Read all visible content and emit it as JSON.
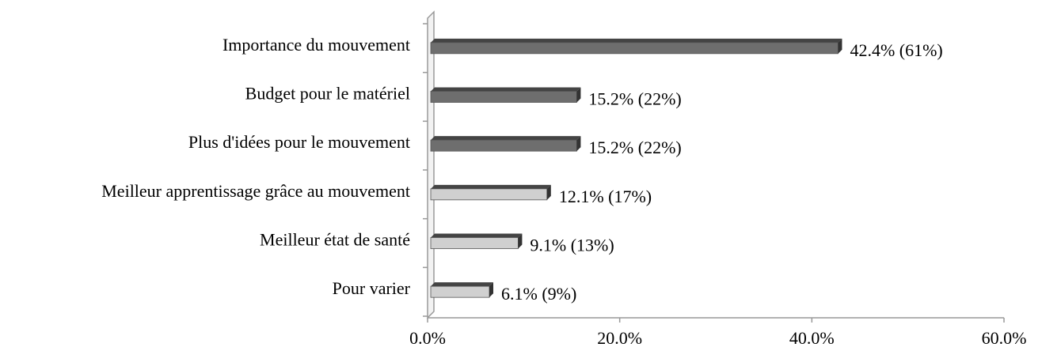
{
  "chart_data": {
    "type": "bar",
    "orientation": "horizontal",
    "categories": [
      "Importance du mouvement",
      "Budget pour le matériel",
      "Plus d'idées pour le mouvement",
      "Meilleur apprentissage grâce au mouvement",
      "Meilleur état de santé",
      "Pour varier"
    ],
    "values": [
      42.4,
      15.2,
      15.2,
      12.1,
      9.1,
      6.1
    ],
    "value_labels": [
      "42.4% (61%)",
      "15.2% (22%)",
      "15.2% (22%)",
      "12.1% (17%)",
      "9.1% (13%)",
      "6.1% (9%)"
    ],
    "colors": [
      "#6e6e6e",
      "#6e6e6e",
      "#6e6e6e",
      "#d0d0d0",
      "#d0d0d0",
      "#d0d0d0"
    ],
    "xlim": [
      0,
      60
    ],
    "xticks": [
      {
        "value": 0,
        "label": "0.0%"
      },
      {
        "value": 20,
        "label": "20.0%"
      },
      {
        "value": 40,
        "label": "40.0%"
      },
      {
        "value": 60,
        "label": "60.0%"
      }
    ]
  }
}
